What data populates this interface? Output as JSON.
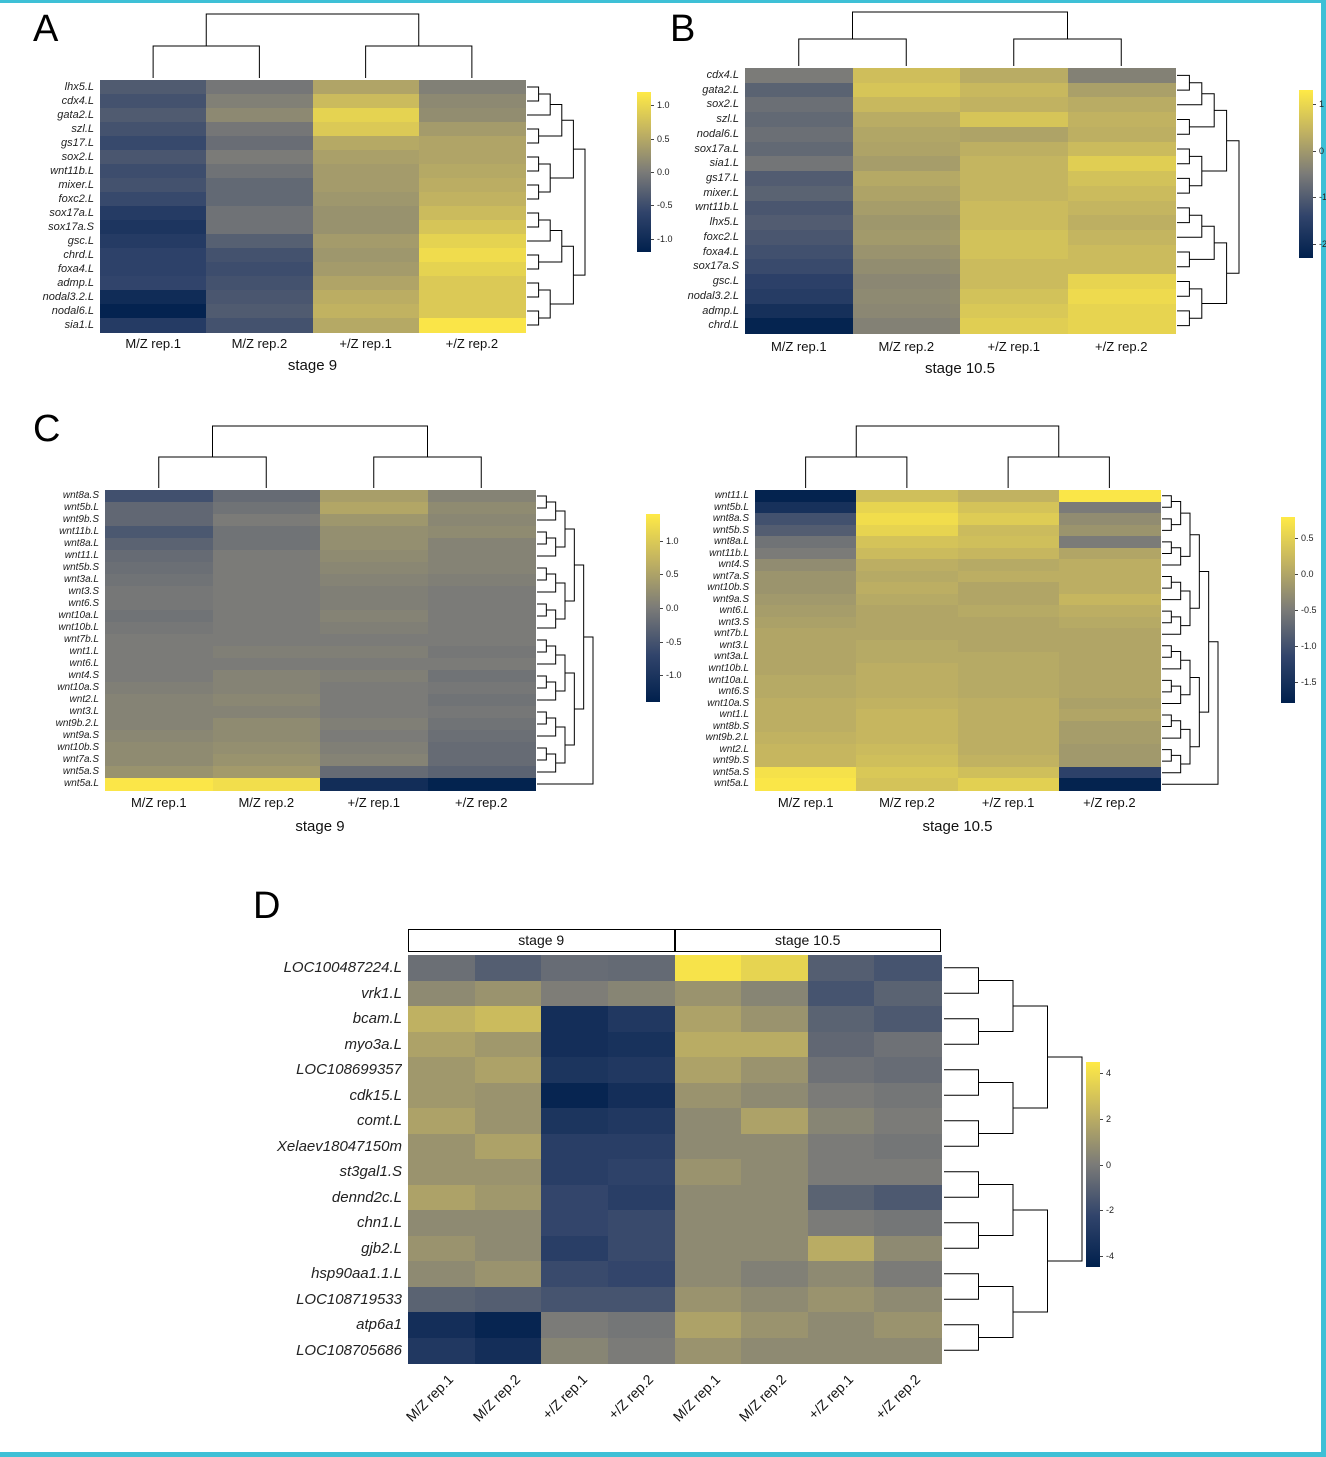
{
  "labels": {
    "panel_a": "A",
    "panel_b": "B",
    "panel_c": "C",
    "panel_d": "D"
  },
  "page": {
    "background": "#ffffff",
    "frame_color": "#3ec0d6"
  },
  "colormap": {
    "name": "cividis-like",
    "stops": [
      "#00204D",
      "#31446B",
      "#7B7B78",
      "#C1B261",
      "#FFEA46"
    ]
  },
  "chart_data": [
    {
      "type": "heatmap",
      "panel_key": "A",
      "title": "stage 9",
      "columns": [
        "M/Z rep.1",
        "M/Z rep.2",
        "+/Z rep.1",
        "+/Z rep.2"
      ],
      "rows": [
        "lhx5.L",
        "cdx4.L",
        "gata2.L",
        "szl.L",
        "gs17.L",
        "sox2.L",
        "wnt11b.L",
        "mixer.L",
        "foxc2.L",
        "sox17a.L",
        "sox17a.S",
        "gsc.L",
        "chrd.L",
        "foxa4.L",
        "admp.L",
        "nodal3.2.L",
        "nodal6.L",
        "sia1.L"
      ],
      "values": [
        [
          -0.35,
          -0.05,
          0.45,
          0.05
        ],
        [
          -0.45,
          0.05,
          0.7,
          0.15
        ],
        [
          -0.35,
          0.15,
          0.95,
          0.2
        ],
        [
          -0.45,
          -0.05,
          0.85,
          0.35
        ],
        [
          -0.55,
          -0.15,
          0.5,
          0.45
        ],
        [
          -0.4,
          0.0,
          0.4,
          0.45
        ],
        [
          -0.5,
          -0.1,
          0.35,
          0.5
        ],
        [
          -0.45,
          -0.2,
          0.35,
          0.55
        ],
        [
          -0.55,
          -0.2,
          0.3,
          0.6
        ],
        [
          -0.75,
          -0.1,
          0.25,
          0.7
        ],
        [
          -0.85,
          -0.1,
          0.25,
          0.8
        ],
        [
          -0.75,
          -0.3,
          0.35,
          0.95
        ],
        [
          -0.65,
          -0.45,
          0.3,
          1.05
        ],
        [
          -0.65,
          -0.5,
          0.35,
          0.95
        ],
        [
          -0.6,
          -0.45,
          0.45,
          0.85
        ],
        [
          -1.0,
          -0.4,
          0.55,
          0.85
        ],
        [
          -1.15,
          -0.35,
          0.6,
          0.85
        ],
        [
          -0.75,
          -0.45,
          0.5,
          1.15
        ]
      ],
      "vmin": -1.2,
      "vmax": 1.2,
      "colorbar_ticks": [
        {
          "v": 1.0,
          "label": "1.0"
        },
        {
          "v": 0.5,
          "label": "0.5"
        },
        {
          "v": 0.0,
          "label": "0.0"
        },
        {
          "v": -0.5,
          "label": "-0.5"
        },
        {
          "v": -1.0,
          "label": "-1.0"
        }
      ]
    },
    {
      "type": "heatmap",
      "panel_key": "B",
      "title": "stage 10.5",
      "columns": [
        "M/Z rep.1",
        "M/Z rep.2",
        "+/Z rep.1",
        "+/Z rep.2"
      ],
      "rows": [
        "cdx4.L",
        "gata2.L",
        "sox2.L",
        "szl.L",
        "nodal6.L",
        "sox17a.L",
        "sia1.L",
        "gs17.L",
        "mixer.L",
        "wnt11b.L",
        "lhx5.L",
        "foxc2.L",
        "foxa4.L",
        "sox17a.S",
        "gsc.L",
        "nodal3.2.L",
        "admp.L",
        "chrd.L"
      ],
      "values": [
        [
          -0.5,
          0.6,
          0.3,
          -0.4
        ],
        [
          -0.9,
          0.7,
          0.5,
          0.1
        ],
        [
          -0.7,
          0.5,
          0.4,
          0.3
        ],
        [
          -0.8,
          0.3,
          0.7,
          0.4
        ],
        [
          -0.7,
          0.2,
          0.15,
          0.35
        ],
        [
          -0.8,
          0.15,
          0.35,
          0.55
        ],
        [
          -0.6,
          0.05,
          0.45,
          0.85
        ],
        [
          -1.0,
          0.25,
          0.45,
          0.65
        ],
        [
          -0.9,
          0.15,
          0.45,
          0.55
        ],
        [
          -1.1,
          0.05,
          0.55,
          0.45
        ],
        [
          -1.0,
          -0.05,
          0.55,
          0.35
        ],
        [
          -1.1,
          0.0,
          0.65,
          0.45
        ],
        [
          -1.2,
          -0.1,
          0.65,
          0.55
        ],
        [
          -1.3,
          -0.2,
          0.55,
          0.55
        ],
        [
          -1.5,
          -0.3,
          0.55,
          0.95
        ],
        [
          -1.6,
          -0.25,
          0.65,
          1.05
        ],
        [
          -1.9,
          -0.3,
          0.75,
          0.95
        ],
        [
          -2.2,
          -0.4,
          0.85,
          0.95
        ]
      ],
      "vmin": -2.3,
      "vmax": 1.3,
      "colorbar_ticks": [
        {
          "v": 1,
          "label": "1"
        },
        {
          "v": 0,
          "label": "0"
        },
        {
          "v": -1,
          "label": "-1"
        },
        {
          "v": -2,
          "label": "-2"
        }
      ]
    },
    {
      "type": "heatmap",
      "panel_key": "C1",
      "title": "stage 9",
      "columns": [
        "M/Z rep.1",
        "M/Z rep.2",
        "+/Z rep.1",
        "+/Z rep.2"
      ],
      "rows": [
        "wnt8a.S",
        "wnt5b.L",
        "wnt9b.S",
        "wnt11b.L",
        "wnt8a.L",
        "wnt11.L",
        "wnt5b.S",
        "wnt3a.L",
        "wnt3.S",
        "wnt6.S",
        "wnt10a.L",
        "wnt10b.L",
        "wnt7b.L",
        "wnt1.L",
        "wnt6.L",
        "wnt4.S",
        "wnt10a.S",
        "wnt2.L",
        "wnt3.L",
        "wnt9b.2.L",
        "wnt9a.S",
        "wnt10b.S",
        "wnt7a.S",
        "wnt5a.S",
        "wnt5a.L"
      ],
      "values": [
        [
          -0.55,
          -0.2,
          0.45,
          0.1
        ],
        [
          -0.25,
          -0.1,
          0.55,
          0.2
        ],
        [
          -0.25,
          0.0,
          0.35,
          0.15
        ],
        [
          -0.45,
          -0.1,
          0.25,
          0.2
        ],
        [
          -0.3,
          -0.1,
          0.25,
          0.1
        ],
        [
          -0.2,
          0.0,
          0.2,
          0.1
        ],
        [
          -0.15,
          0.0,
          0.15,
          0.1
        ],
        [
          -0.1,
          0.0,
          0.1,
          0.05
        ],
        [
          -0.05,
          0.0,
          0.05,
          0.0
        ],
        [
          -0.05,
          0.0,
          0.05,
          0.0
        ],
        [
          -0.1,
          0.0,
          0.1,
          0.0
        ],
        [
          -0.05,
          0.0,
          0.05,
          0.0
        ],
        [
          0.0,
          0.0,
          0.0,
          0.0
        ],
        [
          0.0,
          0.05,
          0.05,
          -0.05
        ],
        [
          0.0,
          0.0,
          0.0,
          0.0
        ],
        [
          0.0,
          0.1,
          0.05,
          -0.1
        ],
        [
          0.05,
          0.1,
          0.0,
          -0.05
        ],
        [
          0.1,
          0.15,
          0.0,
          -0.1
        ],
        [
          0.1,
          0.1,
          0.0,
          -0.05
        ],
        [
          0.1,
          0.2,
          0.05,
          -0.1
        ],
        [
          0.15,
          0.2,
          0.0,
          -0.15
        ],
        [
          0.2,
          0.25,
          0.05,
          -0.2
        ],
        [
          0.2,
          0.3,
          0.1,
          -0.2
        ],
        [
          0.3,
          0.4,
          -0.2,
          -0.3
        ],
        [
          1.35,
          1.25,
          -1.15,
          -1.35
        ]
      ],
      "vmin": -1.4,
      "vmax": 1.4,
      "colorbar_ticks": [
        {
          "v": 1.0,
          "label": "1.0"
        },
        {
          "v": 0.5,
          "label": "0.5"
        },
        {
          "v": 0.0,
          "label": "0.0"
        },
        {
          "v": -0.5,
          "label": "-0.5"
        },
        {
          "v": -1.0,
          "label": "-1.0"
        }
      ]
    },
    {
      "type": "heatmap",
      "panel_key": "C2",
      "title": "stage 10.5",
      "columns": [
        "M/Z rep.1",
        "M/Z rep.2",
        "+/Z rep.1",
        "+/Z rep.2"
      ],
      "rows": [
        "wnt11.L",
        "wnt5b.L",
        "wnt8a.S",
        "wnt5b.S",
        "wnt8a.L",
        "wnt11b.L",
        "wnt4.S",
        "wnt7a.S",
        "wnt10b.S",
        "wnt9a.S",
        "wnt6.L",
        "wnt3.S",
        "wnt7b.L",
        "wnt3.L",
        "wnt3a.L",
        "wnt10b.L",
        "wnt10a.L",
        "wnt6.S",
        "wnt10a.S",
        "wnt1.L",
        "wnt8b.S",
        "wnt9b.2.L",
        "wnt2.L",
        "wnt9b.S",
        "wnt5a.S",
        "wnt5a.L"
      ],
      "values": [
        [
          -1.75,
          0.3,
          0.15,
          0.75
        ],
        [
          -1.5,
          0.55,
          0.35,
          -0.5
        ],
        [
          -1.0,
          0.65,
          0.45,
          -0.3
        ],
        [
          -0.85,
          0.55,
          0.25,
          -0.2
        ],
        [
          -0.6,
          0.35,
          0.3,
          -0.5
        ],
        [
          -0.5,
          0.25,
          0.2,
          0.0
        ],
        [
          -0.3,
          0.1,
          0.05,
          0.1
        ],
        [
          -0.2,
          0.05,
          0.1,
          0.1
        ],
        [
          -0.2,
          0.1,
          0.0,
          0.1
        ],
        [
          -0.15,
          0.05,
          0.0,
          0.2
        ],
        [
          -0.1,
          0.0,
          0.05,
          0.1
        ],
        [
          -0.05,
          0.0,
          0.0,
          0.05
        ],
        [
          0.0,
          0.0,
          0.0,
          0.0
        ],
        [
          0.0,
          0.05,
          0.0,
          0.0
        ],
        [
          0.0,
          0.05,
          0.05,
          0.0
        ],
        [
          0.0,
          0.1,
          0.05,
          0.0
        ],
        [
          0.05,
          0.1,
          0.05,
          0.0
        ],
        [
          0.05,
          0.1,
          0.05,
          0.0
        ],
        [
          0.1,
          0.15,
          0.1,
          -0.05
        ],
        [
          0.1,
          0.2,
          0.1,
          0.0
        ],
        [
          0.1,
          0.2,
          0.1,
          -0.1
        ],
        [
          0.15,
          0.2,
          0.1,
          -0.1
        ],
        [
          0.2,
          0.25,
          0.1,
          -0.15
        ],
        [
          0.2,
          0.3,
          0.15,
          -0.15
        ],
        [
          0.7,
          0.4,
          0.3,
          -1.2
        ],
        [
          0.75,
          0.35,
          0.5,
          -1.75
        ]
      ],
      "vmin": -1.8,
      "vmax": 0.8,
      "colorbar_ticks": [
        {
          "v": 0.5,
          "label": "0.5"
        },
        {
          "v": 0.0,
          "label": "0.0"
        },
        {
          "v": -0.5,
          "label": "-0.5"
        },
        {
          "v": -1.0,
          "label": "-1.0"
        },
        {
          "v": -1.5,
          "label": "-1.5"
        }
      ]
    },
    {
      "type": "heatmap",
      "panel_key": "D",
      "title": "",
      "group_headers": [
        {
          "label": "stage 9",
          "span": 4
        },
        {
          "label": "stage 10.5",
          "span": 4
        }
      ],
      "columns": [
        "M/Z rep.1",
        "M/Z rep.2",
        "+/Z rep.1",
        "+/Z rep.2",
        "M/Z rep.1",
        "M/Z rep.2",
        "+/Z rep.1",
        "+/Z rep.2"
      ],
      "rows": [
        "LOC100487224.L",
        "vrk1.L",
        "bcam.L",
        "myo3a.L",
        "LOC108699357",
        "cdk15.L",
        "comt.L",
        "Xelaev18047150m",
        "st3gal1.S",
        "dennd2c.L",
        "chn1.L",
        "gjb2.L",
        "hsp90aa1.1.L",
        "LOC108719533",
        "atp6a1",
        "LOC108705686"
      ],
      "values": [
        [
          -0.5,
          -1.2,
          -0.6,
          -0.7,
          4.2,
          3.6,
          -1.2,
          -1.6
        ],
        [
          0.6,
          1.0,
          0.1,
          0.4,
          1.0,
          0.4,
          -1.6,
          -1.0
        ],
        [
          2.2,
          2.6,
          -3.6,
          -3.0,
          1.6,
          1.0,
          -1.0,
          -1.4
        ],
        [
          1.6,
          1.2,
          -3.6,
          -3.4,
          2.0,
          2.0,
          -0.8,
          -0.4
        ],
        [
          1.2,
          1.6,
          -3.2,
          -3.0,
          1.6,
          1.0,
          -0.4,
          -0.6
        ],
        [
          1.2,
          1.0,
          -4.2,
          -3.6,
          1.0,
          0.6,
          0.0,
          -0.2
        ],
        [
          1.6,
          1.0,
          -3.2,
          -3.0,
          0.6,
          1.6,
          0.4,
          0.0
        ],
        [
          1.0,
          1.6,
          -2.6,
          -2.6,
          0.6,
          0.6,
          0.0,
          -0.2
        ],
        [
          1.0,
          1.0,
          -2.6,
          -2.4,
          1.0,
          0.6,
          0.0,
          0.0
        ],
        [
          1.6,
          1.2,
          -2.2,
          -2.6,
          0.6,
          0.6,
          -1.0,
          -1.4
        ],
        [
          0.6,
          0.6,
          -2.2,
          -2.0,
          0.6,
          0.6,
          0.0,
          -0.2
        ],
        [
          1.0,
          0.6,
          -2.6,
          -2.0,
          0.6,
          0.6,
          2.0,
          0.6
        ],
        [
          0.6,
          1.0,
          -2.0,
          -2.2,
          0.6,
          0.2,
          0.6,
          0.0
        ],
        [
          -1.0,
          -1.2,
          -1.6,
          -1.6,
          1.0,
          0.6,
          1.0,
          0.6
        ],
        [
          -3.6,
          -4.2,
          0.0,
          -0.2,
          1.6,
          1.0,
          0.6,
          1.0
        ],
        [
          -3.0,
          -3.6,
          0.4,
          0.0,
          1.0,
          0.6,
          0.6,
          0.6
        ]
      ],
      "vmin": -4.5,
      "vmax": 4.5,
      "colorbar_ticks": [
        {
          "v": 4,
          "label": "4"
        },
        {
          "v": 2,
          "label": "2"
        },
        {
          "v": 0,
          "label": "0"
        },
        {
          "v": -2,
          "label": "-2"
        },
        {
          "v": -4,
          "label": "-4"
        }
      ]
    }
  ]
}
